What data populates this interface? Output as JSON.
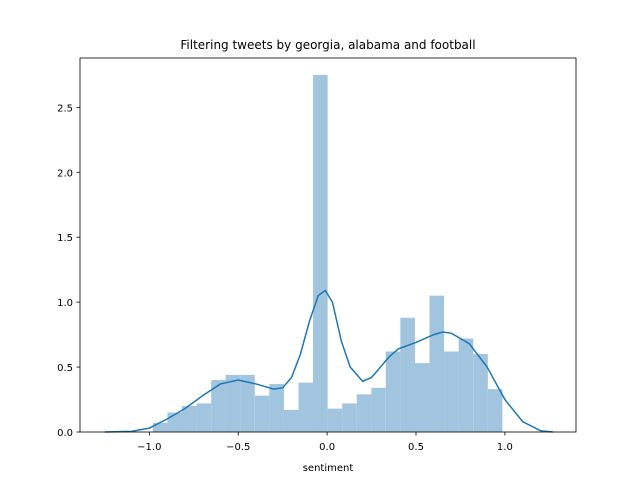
{
  "chart_data": {
    "type": "histogram",
    "title": "Filtering tweets by georgia, alabama and football",
    "xlabel": "sentiment",
    "bins": [
      -0.98,
      -0.898,
      -0.816,
      -0.734,
      -0.652,
      -0.571,
      -0.489,
      -0.407,
      -0.325,
      -0.243,
      -0.161,
      -0.079,
      0.003,
      0.085,
      0.167,
      0.249,
      0.33,
      0.412,
      0.494,
      0.576,
      0.658,
      0.74,
      0.822,
      0.904,
      0.986
    ],
    "values": [
      0.07,
      0.15,
      0.2,
      0.22,
      0.4,
      0.44,
      0.44,
      0.28,
      0.37,
      0.17,
      0.38,
      2.75,
      0.18,
      0.22,
      0.29,
      0.34,
      0.62,
      0.88,
      0.53,
      1.05,
      0.62,
      0.72,
      0.6,
      0.33
    ],
    "color": "#a1c4df",
    "kde": {
      "color": "#1f77b4",
      "x": [
        -1.25,
        -1.1,
        -1.0,
        -0.9,
        -0.8,
        -0.7,
        -0.6,
        -0.5,
        -0.4,
        -0.3,
        -0.25,
        -0.2,
        -0.15,
        -0.1,
        -0.05,
        -0.01,
        0.03,
        0.08,
        0.13,
        0.2,
        0.25,
        0.3,
        0.35,
        0.4,
        0.5,
        0.6,
        0.65,
        0.7,
        0.8,
        0.9,
        1.0,
        1.1,
        1.2,
        1.27
      ],
      "y": [
        0,
        0.005,
        0.03,
        0.1,
        0.18,
        0.28,
        0.37,
        0.4,
        0.37,
        0.33,
        0.34,
        0.42,
        0.6,
        0.85,
        1.05,
        1.09,
        1.0,
        0.7,
        0.5,
        0.39,
        0.42,
        0.5,
        0.58,
        0.64,
        0.69,
        0.75,
        0.77,
        0.76,
        0.68,
        0.5,
        0.25,
        0.08,
        0.01,
        0
      ]
    },
    "xlim": [
      -1.39,
      1.4
    ],
    "ylim": [
      0,
      2.88
    ],
    "xticks": [
      {
        "value": -1.0,
        "label": "−1.0"
      },
      {
        "value": -0.5,
        "label": "−0.5"
      },
      {
        "value": 0.0,
        "label": "0.0"
      },
      0.5,
      {
        "value": 1.0,
        "label": "1.0"
      }
    ],
    "yticks": [
      {
        "value": 0,
        "label": "0.0"
      },
      0.5,
      {
        "value": 1.0,
        "label": "1.0"
      },
      1.5,
      {
        "value": 2.0,
        "label": "2.0"
      },
      2.5
    ],
    "grid": false
  }
}
